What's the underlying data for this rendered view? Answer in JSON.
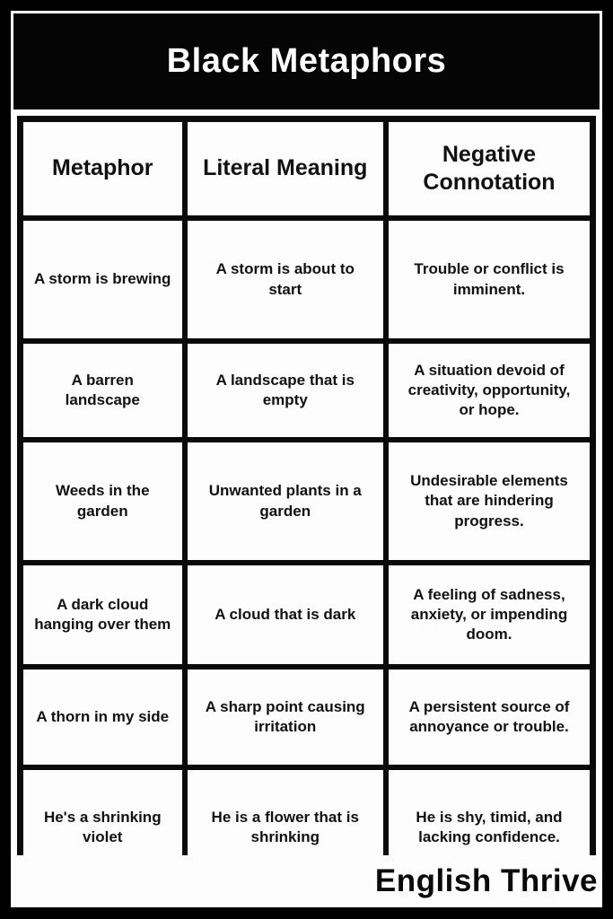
{
  "title": "Black Metaphors",
  "colors": {
    "background": "#000000",
    "surface": "#fdfdfd",
    "title_band": "#050505",
    "border": "#0a0a0a",
    "text": "#111111",
    "title_text": "#ffffff"
  },
  "table": {
    "headers": [
      "Metaphor",
      "Literal Meaning",
      "Negative Connotation"
    ],
    "rows": [
      [
        "A storm is brewing",
        "A storm is about to start",
        "Trouble or conflict is imminent."
      ],
      [
        "A barren landscape",
        "A landscape that is empty",
        "A situation devoid of creativity, opportunity, or hope."
      ],
      [
        "Weeds in the garden",
        "Unwanted plants in a garden",
        "Undesirable elements that are hindering progress."
      ],
      [
        "A dark cloud hanging over them",
        "A cloud that is dark",
        "A feeling of sadness, anxiety, or impending doom."
      ],
      [
        "A thorn in my side",
        "A sharp point causing irritation",
        "A persistent source of annoyance or trouble."
      ],
      [
        "He's a shrinking violet",
        "He is a flower that is shrinking",
        "He is shy, timid, and lacking confidence."
      ]
    ]
  },
  "footer": {
    "brand": "English Thrive"
  }
}
